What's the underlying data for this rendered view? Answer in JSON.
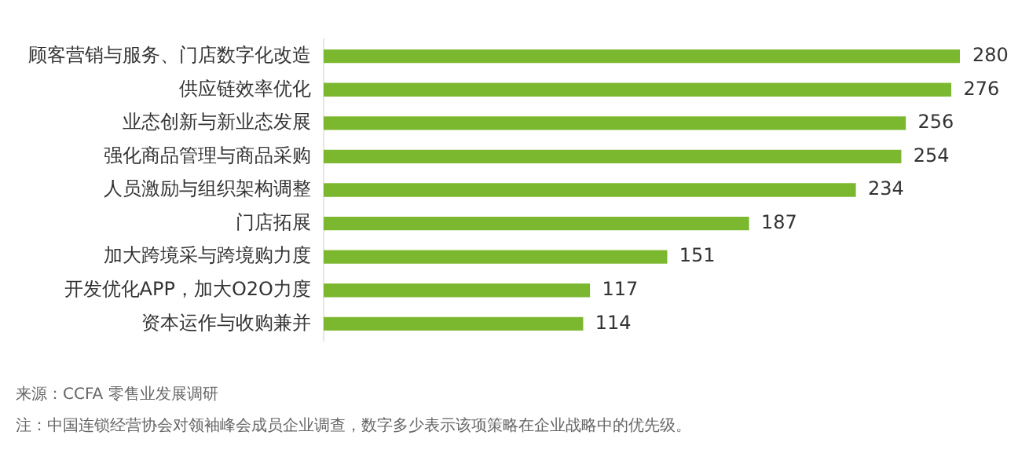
{
  "chart_data": {
    "type": "bar",
    "orientation": "horizontal",
    "categories": [
      "顾客营销与服务、门店数字化改造",
      "供应链效率优化",
      "业态创新与新业态发展",
      "强化商品管理与商品采购",
      "人员激励与组织架构调整",
      "门店拓展",
      "加大跨境采与跨境购力度",
      "开发优化APP，加大O2O力度",
      "资本运作与收购兼并"
    ],
    "values": [
      280,
      276,
      256,
      254,
      234,
      187,
      151,
      117,
      114
    ],
    "color": "#7cb82f",
    "data_labels": true,
    "legend": false,
    "annotations": [
      "来源：CCFA 零售业发展调研",
      "注：中国连锁经营协会对领袖峰会成员企业调查，数字多少表示该项策略在企业战略中的优先级。"
    ]
  }
}
